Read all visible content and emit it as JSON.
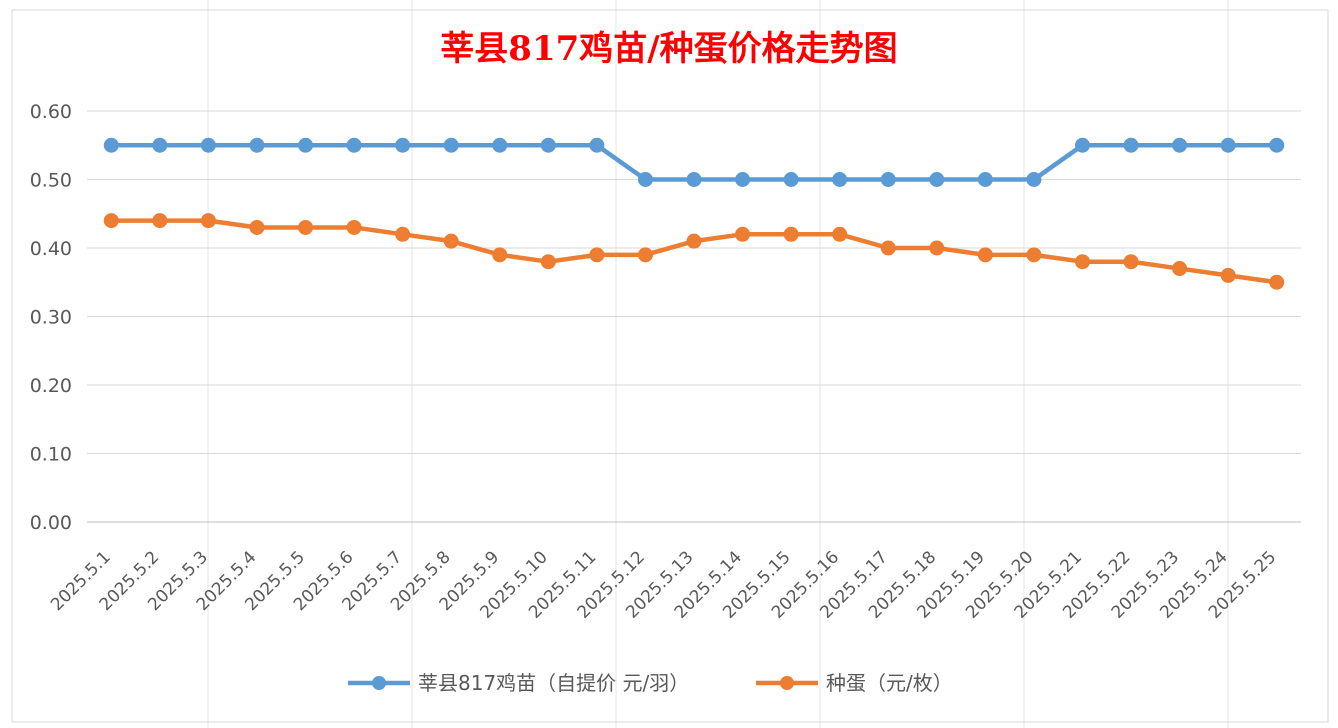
{
  "chart_data": {
    "type": "line",
    "title": "莘县817鸡苗/种蛋价格走势图",
    "xlabel": "",
    "ylabel": "",
    "ylim": [
      0,
      0.6
    ],
    "yticks": [
      "0.00",
      "0.10",
      "0.20",
      "0.30",
      "0.40",
      "0.50",
      "0.60"
    ],
    "grid": true,
    "legend_position": "bottom",
    "categories": [
      "2025.5.1",
      "2025.5.2",
      "2025.5.3",
      "2025.5.4",
      "2025.5.5",
      "2025.5.6",
      "2025.5.7",
      "2025.5.8",
      "2025.5.9",
      "2025.5.10",
      "2025.5.11",
      "2025.5.12",
      "2025.5.13",
      "2025.5.14",
      "2025.5.15",
      "2025.5.16",
      "2025.5.17",
      "2025.5.18",
      "2025.5.19",
      "2025.5.20",
      "2025.5.21",
      "2025.5.22",
      "2025.5.23",
      "2025.5.24",
      "2025.5.25"
    ],
    "series": [
      {
        "name": "莘县817鸡苗（自提价 元/羽）",
        "color": "#5b9bd5",
        "values": [
          0.55,
          0.55,
          0.55,
          0.55,
          0.55,
          0.55,
          0.55,
          0.55,
          0.55,
          0.55,
          0.55,
          0.5,
          0.5,
          0.5,
          0.5,
          0.5,
          0.5,
          0.5,
          0.5,
          0.5,
          0.55,
          0.55,
          0.55,
          0.55,
          0.55
        ]
      },
      {
        "name": "种蛋（元/枚）",
        "color": "#ed7d31",
        "values": [
          0.44,
          0.44,
          0.44,
          0.43,
          0.43,
          0.43,
          0.42,
          0.41,
          0.39,
          0.38,
          0.39,
          0.39,
          0.41,
          0.42,
          0.42,
          0.42,
          0.4,
          0.4,
          0.39,
          0.39,
          0.38,
          0.38,
          0.37,
          0.36,
          0.35
        ]
      }
    ]
  }
}
